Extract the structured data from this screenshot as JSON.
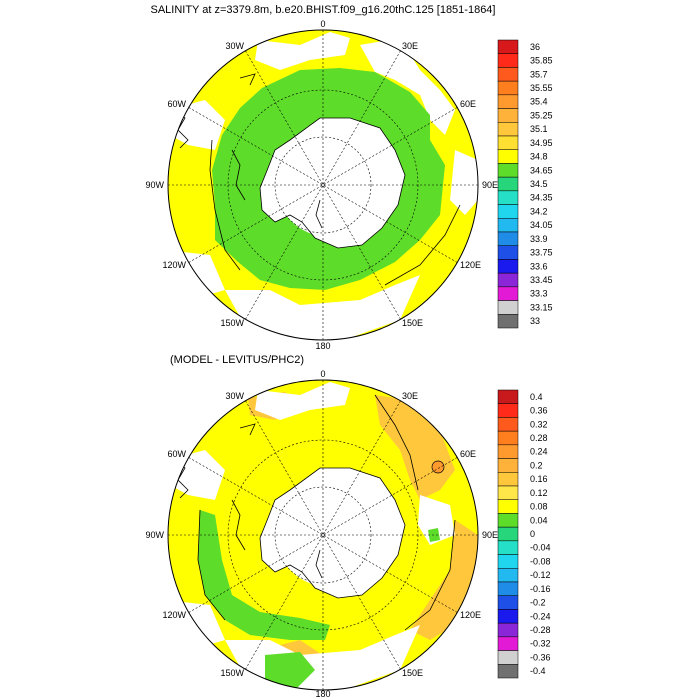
{
  "chart_data": [
    {
      "type": "heatmap",
      "projection": "south-polar-stereographic",
      "title": "SALINITY at z=3379.8m, b.e20.BHIST.f09_g16.20thC.125 [1851-1864]",
      "lon_labels": [
        "0",
        "30E",
        "60E",
        "90E",
        "120E",
        "150E",
        "180",
        "150W",
        "120W",
        "90W",
        "60W",
        "30W"
      ],
      "colorbar": {
        "labels": [
          "36",
          "35.85",
          "35.7",
          "35.55",
          "35.4",
          "35.25",
          "35.1",
          "34.95",
          "34.8",
          "34.65",
          "34.5",
          "34.35",
          "34.2",
          "34.05",
          "33.9",
          "33.75",
          "33.6",
          "33.45",
          "33.3",
          "33.15",
          "33"
        ],
        "colors": [
          "#d7191c",
          "#ff2a1a",
          "#ff5a1e",
          "#ff7f1e",
          "#ff9a2e",
          "#ffb23a",
          "#ffc83c",
          "#ffe032",
          "#ffff00",
          "#5edc2a",
          "#27d67a",
          "#25e0c6",
          "#20d6ef",
          "#22b8f0",
          "#1f8de8",
          "#1e4fe6",
          "#1a1aee",
          "#8a25d8",
          "#e21ad6",
          "#d0d0d0",
          "#707070"
        ]
      },
      "regions": {
        "ocean_base": "#ffff00",
        "deep_band": "#5edc2a",
        "missing": "#ffffff"
      }
    },
    {
      "type": "heatmap",
      "projection": "south-polar-stereographic",
      "title": "(MODEL - LEVITUS/PHC2)",
      "lon_labels": [
        "0",
        "30E",
        "60E",
        "90E",
        "120E",
        "150E",
        "180",
        "150W",
        "120W",
        "90W",
        "60W",
        "30W"
      ],
      "colorbar": {
        "labels": [
          "0.4",
          "0.36",
          "0.32",
          "0.28",
          "0.24",
          "0.2",
          "0.16",
          "0.12",
          "0.08",
          "0.04",
          "0",
          "-0.04",
          "-0.08",
          "-0.12",
          "-0.16",
          "-0.2",
          "-0.24",
          "-0.28",
          "-0.32",
          "-0.36",
          "-0.4"
        ],
        "colors": [
          "#c8191c",
          "#ff2a1a",
          "#ff5a1e",
          "#ff7f1e",
          "#ff9a2e",
          "#ffb23a",
          "#ffc83c",
          "#ffe74a",
          "#ffff00",
          "#5edc2a",
          "#27d67a",
          "#25e0c6",
          "#20d6ef",
          "#22b8f0",
          "#1f8de8",
          "#1e4fe6",
          "#1a1aee",
          "#8a25d8",
          "#e21ad6",
          "#d0d0d0",
          "#707070"
        ]
      },
      "regions": {
        "ocean_base": "#ffff00",
        "positive_patch": "#ffc83c",
        "small_negative": "#5edc2a",
        "missing": "#ffffff"
      }
    }
  ]
}
